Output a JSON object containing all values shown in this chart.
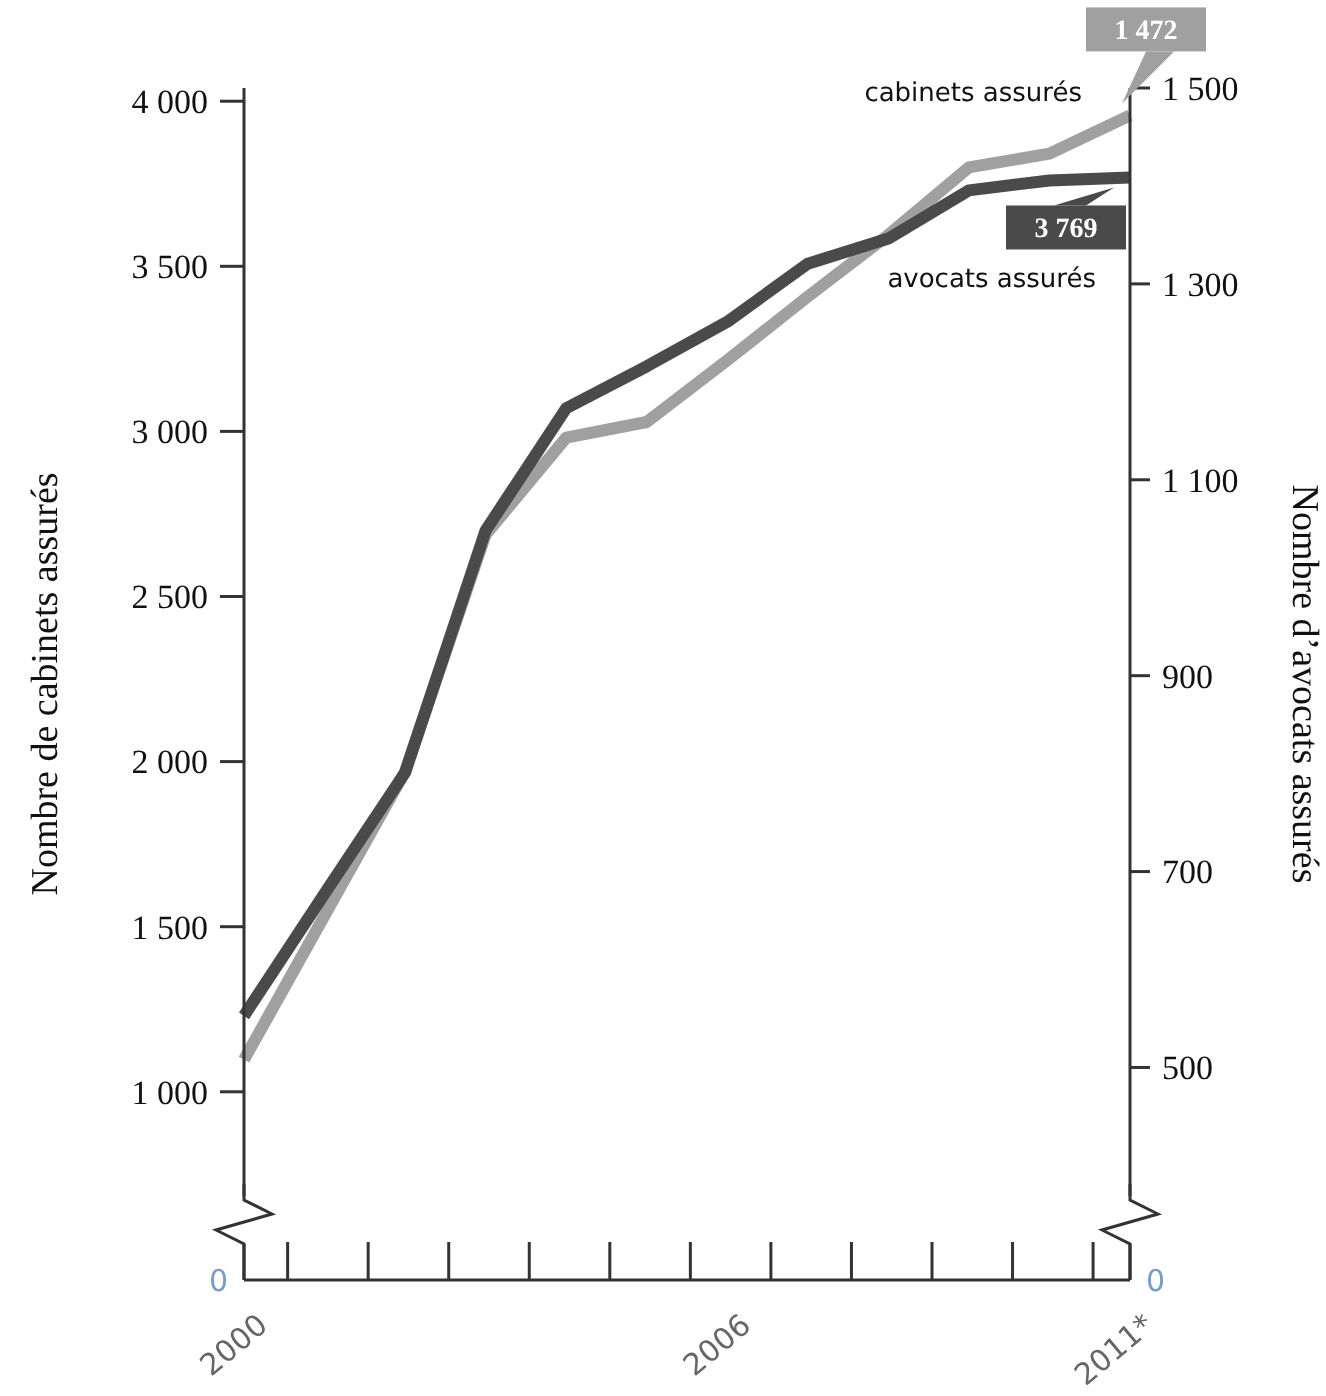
{
  "chart_data": {
    "type": "line",
    "ylabel": "Nombre de cabinets assurés",
    "y2label": "Nombre d’avocats assurés",
    "categories": [
      "2000",
      null,
      null,
      null,
      null,
      null,
      "2006",
      null,
      null,
      null,
      null,
      "2011*"
    ],
    "annotations": [
      "0",
      "0"
    ],
    "ylim": [
      430,
      4040
    ],
    "yticks": [
      {
        "value": 1000,
        "label": "1 000"
      },
      {
        "value": 1500,
        "label": "1 500"
      },
      {
        "value": 2000,
        "label": "2 000"
      },
      {
        "value": 2500,
        "label": "2 500"
      },
      {
        "value": 3000,
        "label": "3 000"
      },
      {
        "value": 3500,
        "label": "3 500"
      },
      {
        "value": 4000,
        "label": "4 000"
      }
    ],
    "y2lim": [
      283,
      1500
    ],
    "y2ticks": [
      500,
      700,
      900,
      {
        "value": 1100,
        "label": "1 100"
      },
      {
        "value": 1300,
        "label": "1 300"
      },
      {
        "value": 1500,
        "label": "1 500"
      }
    ],
    "series": [
      {
        "name": "cabinets assurés",
        "color": "#a0a0a0",
        "axis": "y2",
        "values": [
          508,
          655,
          802,
          1044,
          1143,
          1159,
          1222,
          1287,
          1350,
          1419,
          1433,
          1472
        ],
        "value_labels": [
          null,
          null,
          null,
          null,
          null,
          null,
          null,
          null,
          null,
          null,
          null,
          "1 472"
        ]
      },
      {
        "name": "avocats assurés",
        "color": "#4a4a4a",
        "values": [
          1230,
          1600,
          1967,
          2700,
          3070,
          3197,
          3332,
          3508,
          3584,
          3730,
          3760,
          3769
        ],
        "value_labels": [
          null,
          null,
          null,
          null,
          null,
          null,
          null,
          null,
          null,
          null,
          null,
          "3 769"
        ]
      }
    ],
    "marker": "none",
    "line_style": "solid",
    "grid": false
  }
}
